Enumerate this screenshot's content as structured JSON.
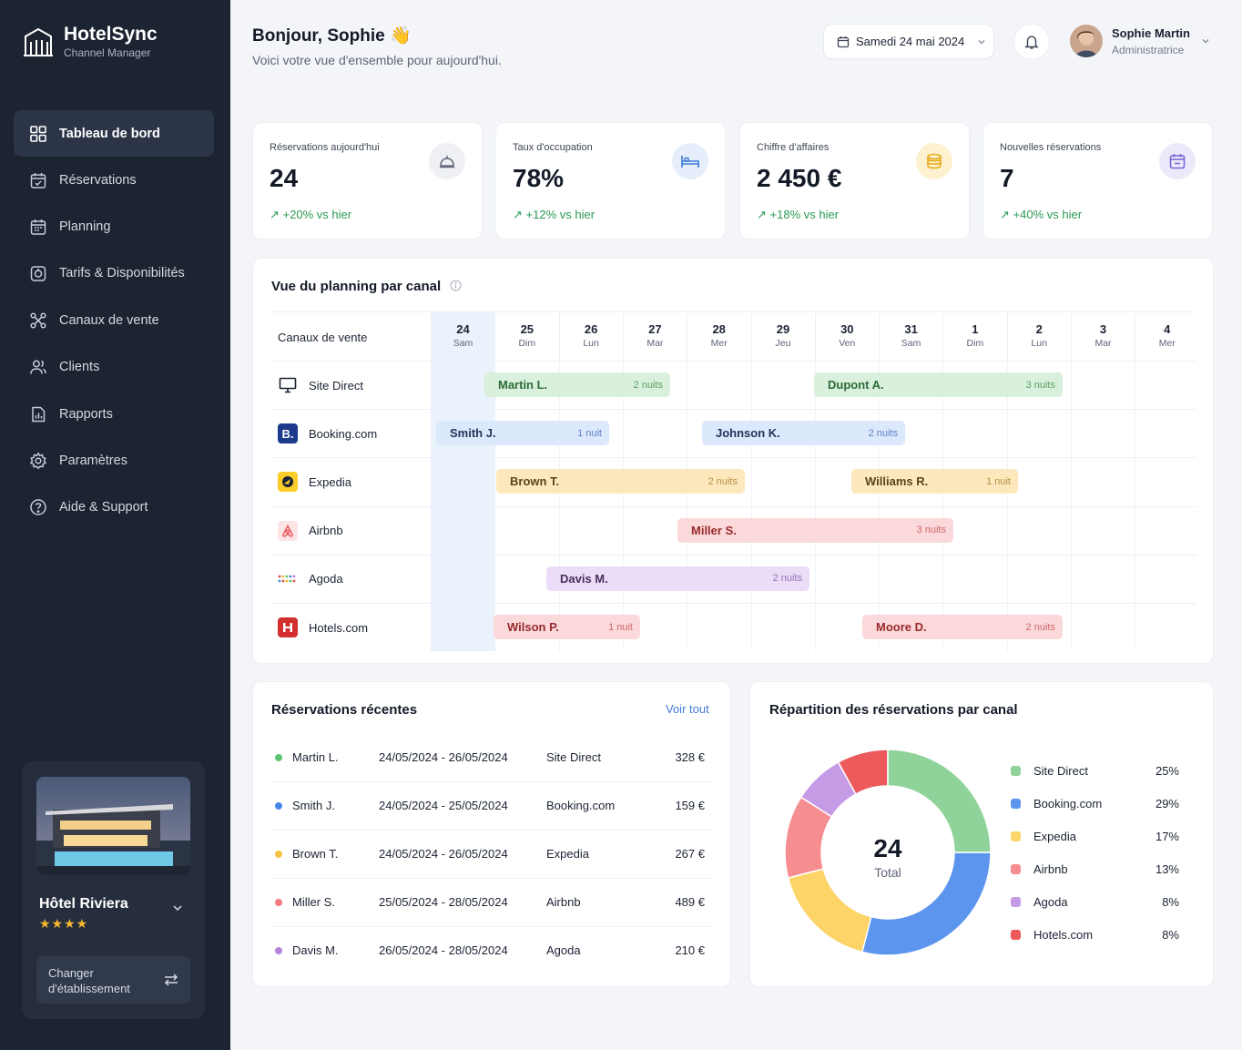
{
  "brand": {
    "name": "HotelSync",
    "subtitle": "Channel Manager"
  },
  "nav": [
    {
      "label": "Tableau de bord",
      "icon": "dashboard-icon",
      "active": true
    },
    {
      "label": "Réservations",
      "icon": "reservations-icon"
    },
    {
      "label": "Planning",
      "icon": "calendar-icon"
    },
    {
      "label": "Tarifs & Disponibilités",
      "icon": "tag-icon"
    },
    {
      "label": "Canaux de vente",
      "icon": "channels-icon"
    },
    {
      "label": "Clients",
      "icon": "users-icon"
    },
    {
      "label": "Rapports",
      "icon": "reports-icon"
    },
    {
      "label": "Paramètres",
      "icon": "gear-icon"
    },
    {
      "label": "Aide & Support",
      "icon": "help-icon"
    }
  ],
  "hotel": {
    "name": "Hôtel Riviera",
    "stars": "★★★★",
    "switch_label_1": "Changer",
    "switch_label_2": "d'établissement"
  },
  "header": {
    "greeting": "Bonjour, Sophie",
    "subtitle": "Voici votre vue d'ensemble pour aujourd'hui.",
    "date": "Samedi 24 mai 2024",
    "user_name": "Sophie Martin",
    "user_role": "Administratrice"
  },
  "kpis": [
    {
      "label": "Réservations aujourd'hui",
      "value": "24",
      "trend": "+20% vs hier",
      "icon": "concierge-bell-icon",
      "icon_bg": "#eef0f4",
      "icon_color": "#5d6577"
    },
    {
      "label": "Taux d'occupation",
      "value": "78%",
      "trend": "+12% vs hier",
      "icon": "bed-icon",
      "icon_bg": "#e6eefc",
      "icon_color": "#3f7bd9"
    },
    {
      "label": "Chiffre d'affaires",
      "value": "2 450 €",
      "trend": "+18% vs hier",
      "icon": "coins-icon",
      "icon_bg": "#fdf1cf",
      "icon_color": "#e6a917"
    },
    {
      "label": "Nouvelles réservations",
      "value": "7",
      "trend": "+40% vs hier",
      "icon": "calendar-plus-icon",
      "icon_bg": "#ede9fb",
      "icon_color": "#7a66d6"
    }
  ],
  "planning": {
    "title": "Vue du planning par canal",
    "column_label": "Canaux de vente",
    "days": [
      {
        "num": "24",
        "name": "Sam"
      },
      {
        "num": "25",
        "name": "Dim"
      },
      {
        "num": "26",
        "name": "Lun"
      },
      {
        "num": "27",
        "name": "Mar"
      },
      {
        "num": "28",
        "name": "Mer"
      },
      {
        "num": "29",
        "name": "Jeu"
      },
      {
        "num": "30",
        "name": "Ven"
      },
      {
        "num": "31",
        "name": "Sam"
      },
      {
        "num": "1",
        "name": "Dim"
      },
      {
        "num": "2",
        "name": "Lun"
      },
      {
        "num": "3",
        "name": "Mar"
      },
      {
        "num": "4",
        "name": "Mer"
      }
    ],
    "channels": [
      {
        "name": "Site Direct",
        "icon": "monitor-icon"
      },
      {
        "name": "Booking.com",
        "icon": "booking-icon"
      },
      {
        "name": "Expedia",
        "icon": "expedia-icon"
      },
      {
        "name": "Airbnb",
        "icon": "airbnb-icon"
      },
      {
        "name": "Agoda",
        "icon": "agoda-icon"
      },
      {
        "name": "Hotels.com",
        "icon": "hotels-icon"
      }
    ],
    "bookings": [
      {
        "guest": "Martin L.",
        "nights": "2 nuits",
        "color": "green"
      },
      {
        "guest": "Dupont A.",
        "nights": "3 nuits",
        "color": "green"
      },
      {
        "guest": "Smith J.",
        "nights": "1 nuit",
        "color": "blue"
      },
      {
        "guest": "Johnson K.",
        "nights": "2 nuits",
        "color": "blue"
      },
      {
        "guest": "Brown T.",
        "nights": "2 nuits",
        "color": "yellow"
      },
      {
        "guest": "Williams R.",
        "nights": "1 nuit",
        "color": "yellow"
      },
      {
        "guest": "Miller S.",
        "nights": "3 nuits",
        "color": "red"
      },
      {
        "guest": "Davis M.",
        "nights": "2 nuits",
        "color": "purple"
      },
      {
        "guest": "Wilson P.",
        "nights": "1 nuit",
        "color": "red"
      },
      {
        "guest": "Moore D.",
        "nights": "2 nuits",
        "color": "red"
      }
    ]
  },
  "recent": {
    "title": "Réservations récentes",
    "link": "Voir tout",
    "rows": [
      {
        "guest": "Martin L.",
        "dates": "24/05/2024 - 26/05/2024",
        "channel": "Site Direct",
        "amount": "328 €",
        "color": "#5cc470"
      },
      {
        "guest": "Smith J.",
        "dates": "24/05/2024 - 25/05/2024",
        "channel": "Booking.com",
        "amount": "159 €",
        "color": "#4a86e8"
      },
      {
        "guest": "Brown T.",
        "dates": "24/05/2024 - 26/05/2024",
        "channel": "Expedia",
        "amount": "267 €",
        "color": "#f5c443"
      },
      {
        "guest": "Miller S.",
        "dates": "25/05/2024 - 28/05/2024",
        "channel": "Airbnb",
        "amount": "489 €",
        "color": "#f07a7e"
      },
      {
        "guest": "Davis M.",
        "dates": "26/05/2024 - 28/05/2024",
        "channel": "Agoda",
        "amount": "210 €",
        "color": "#b585dd"
      }
    ]
  },
  "distribution": {
    "title": "Répartition des réservations par canal",
    "total": "24",
    "total_label": "Total"
  },
  "chart_data": {
    "type": "pie",
    "categories": [
      "Site Direct",
      "Booking.com",
      "Expedia",
      "Airbnb",
      "Agoda",
      "Hotels.com"
    ],
    "values": [
      25,
      29,
      17,
      13,
      8,
      8
    ],
    "labels": [
      "25%",
      "29%",
      "17%",
      "13%",
      "8%",
      "8%"
    ],
    "colors": [
      "#8fd39a",
      "#5b95ee",
      "#fcd468",
      "#f58d91",
      "#c69be6",
      "#ec5a5c"
    ],
    "donut": true,
    "legend": "right"
  }
}
